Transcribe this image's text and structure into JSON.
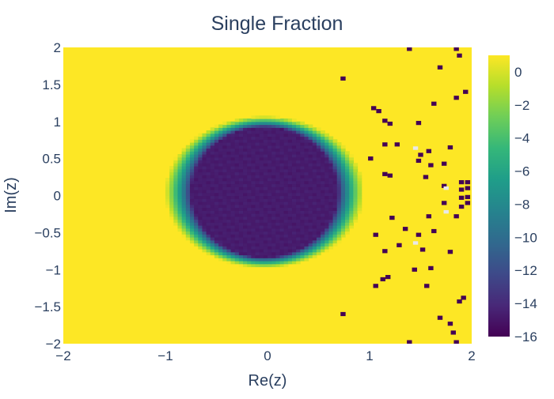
{
  "chart_data": {
    "type": "heatmap",
    "title": "Single Fraction",
    "xlabel": "Re(z)",
    "ylabel": "Im(z)",
    "xlim": [
      -2,
      2
    ],
    "ylim": [
      -2,
      2
    ],
    "x_ticks": [
      -2,
      -1,
      0,
      1,
      2
    ],
    "x_tick_labels": [
      "−2",
      "−1",
      "0",
      "1",
      "2"
    ],
    "y_ticks": [
      -2,
      -1.5,
      -1,
      -0.5,
      0,
      0.5,
      1,
      1.5,
      2
    ],
    "y_tick_labels": [
      "−2",
      "−1.5",
      "−1",
      "−0.5",
      "0",
      "0.5",
      "1",
      "1.5",
      "2"
    ],
    "grid_resolution": [
      100,
      100
    ],
    "colorscale": "Viridis",
    "zlim": [
      -16,
      1
    ],
    "colorbar_ticks": [
      0,
      -2,
      -4,
      -6,
      -8,
      -10,
      -12,
      -14,
      -16
    ],
    "colorbar_tick_labels": [
      "0",
      "−2",
      "−4",
      "−6",
      "−8",
      "−10",
      "−12",
      "−14",
      "−16"
    ],
    "regions": {
      "background_value": 0.8,
      "inner_disk": {
        "center": [
          -0.03,
          0.05
        ],
        "radius_re": 0.72,
        "radius_im": 0.88,
        "value": -14.7
      },
      "transition_ring": {
        "outer_radius_re": 0.97,
        "outer_radius_im": 1.02
      }
    },
    "outliers_value": -16,
    "outliers": [
      [
        1.39,
        1.98
      ],
      [
        1.85,
        1.98
      ],
      [
        1.88,
        1.89
      ],
      [
        0.74,
        1.58
      ],
      [
        1.69,
        1.73
      ],
      [
        1.94,
        1.4
      ],
      [
        1.85,
        1.32
      ],
      [
        1.04,
        1.18
      ],
      [
        1.09,
        1.14
      ],
      [
        1.15,
        1.01
      ],
      [
        1.2,
        0.97
      ],
      [
        1.48,
        0.98
      ],
      [
        1.63,
        1.24
      ],
      [
        1.15,
        0.69
      ],
      [
        1.27,
        0.69
      ],
      [
        1.5,
        0.55
      ],
      [
        1.58,
        0.6
      ],
      [
        1.79,
        0.65
      ],
      [
        1.01,
        0.5
      ],
      [
        1.48,
        0.47
      ],
      [
        1.6,
        0.41
      ],
      [
        1.73,
        0.43
      ],
      [
        1.15,
        0.29
      ],
      [
        1.2,
        0.27
      ],
      [
        1.55,
        0.25
      ],
      [
        1.73,
        0.13
      ],
      [
        1.96,
        0.18
      ],
      [
        1.96,
        0.1
      ],
      [
        1.96,
        -0.02
      ],
      [
        1.96,
        -0.1
      ],
      [
        1.9,
        0.18
      ],
      [
        1.9,
        0.08
      ],
      [
        1.9,
        -0.03
      ],
      [
        1.9,
        -0.15
      ],
      [
        1.22,
        -0.3
      ],
      [
        1.58,
        -0.28
      ],
      [
        1.85,
        -0.28
      ],
      [
        1.73,
        -0.1
      ],
      [
        1.35,
        -0.45
      ],
      [
        1.48,
        -0.53
      ],
      [
        1.63,
        -0.48
      ],
      [
        1.06,
        -0.53
      ],
      [
        1.29,
        -0.67
      ],
      [
        1.52,
        -0.73
      ],
      [
        1.79,
        -0.76
      ],
      [
        1.15,
        -0.75
      ],
      [
        1.44,
        -1.0
      ],
      [
        1.6,
        -0.98
      ],
      [
        1.18,
        -1.1
      ],
      [
        1.13,
        -1.13
      ],
      [
        1.06,
        -1.22
      ],
      [
        1.56,
        -1.22
      ],
      [
        1.92,
        -1.38
      ],
      [
        0.74,
        -1.6
      ],
      [
        1.88,
        -1.43
      ],
      [
        1.69,
        -1.65
      ],
      [
        1.79,
        -1.73
      ],
      [
        1.39,
        -1.98
      ],
      [
        1.85,
        -1.98
      ],
      [
        1.82,
        -1.85
      ]
    ],
    "missing_value_cells": [
      [
        1.45,
        0.64
      ],
      [
        1.45,
        -0.64
      ],
      [
        1.75,
        0.1
      ],
      [
        1.75,
        -0.22
      ]
    ],
    "legend": "none",
    "grid": false
  }
}
